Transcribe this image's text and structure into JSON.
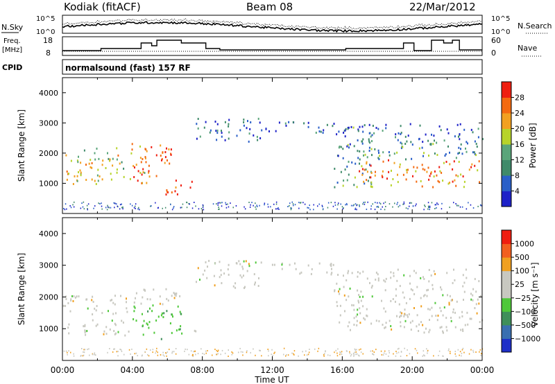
{
  "header": {
    "station": "Kodiak (fitACF)",
    "beam": "Beam 08",
    "date": "22/Mar/2012"
  },
  "param_panels": {
    "nsky_label": "N.Sky",
    "nsearch_label": "N.Search",
    "noise_ticks_left": [
      "10^5",
      "10^0"
    ],
    "noise_ticks_right": [
      "10^5",
      "10^0"
    ],
    "freq_label": "Freq.",
    "freq_unit": "[MHz]",
    "freq_ticks": [
      "18",
      "8"
    ],
    "nave_label": "Nave",
    "nave_ticks": [
      "60",
      "0"
    ],
    "cpid_label": "CPID",
    "cpid_text": "normalsound (fast) 157 RF"
  },
  "chart_data": [
    {
      "type": "heatmap",
      "name_id": "power",
      "ylabel": "Slant Range [km]",
      "ylim": [
        0,
        4500
      ],
      "yticks": [
        1000,
        2000,
        3000,
        4000
      ],
      "xlim": [
        0,
        24
      ],
      "colorbar_label": "Power [dB]",
      "colorbar_ticks": [
        "4",
        "8",
        "12",
        "16",
        "20",
        "24",
        "28"
      ],
      "colorbar_colors": [
        "#1e22c8",
        "#2a5fc8",
        "#3f8a6a",
        "#5aa57a",
        "#b7d32a",
        "#f2a020",
        "#f46a10",
        "#ef1e10"
      ],
      "scatter_bands": [
        {
          "t0": 0.0,
          "t1": 1.0,
          "r0": 900,
          "r1": 2100,
          "level": 0.62
        },
        {
          "t0": 1.0,
          "t1": 3.6,
          "r0": 1000,
          "r1": 2200,
          "level": 0.55
        },
        {
          "t0": 3.6,
          "t1": 4.8,
          "r0": 1000,
          "r1": 2400,
          "level": 0.7
        },
        {
          "t0": 4.5,
          "t1": 6.2,
          "r0": 1200,
          "r1": 2400,
          "level": 0.85
        },
        {
          "t0": 5.8,
          "t1": 7.4,
          "r0": 650,
          "r1": 1200,
          "level": 0.95
        },
        {
          "t0": 7.6,
          "t1": 11.5,
          "r0": 2400,
          "r1": 3200,
          "level": 0.25
        },
        {
          "t0": 11.5,
          "t1": 15.5,
          "r0": 2700,
          "r1": 3100,
          "level": 0.2
        },
        {
          "t0": 15.5,
          "t1": 17.8,
          "r0": 900,
          "r1": 2900,
          "level": 0.3
        },
        {
          "t0": 16.8,
          "t1": 24.0,
          "r0": 900,
          "r1": 1800,
          "level": 0.75
        },
        {
          "t0": 17.5,
          "t1": 24.0,
          "r0": 1800,
          "r1": 2400,
          "level": 0.35
        },
        {
          "t0": 16.0,
          "t1": 24.0,
          "r0": 2400,
          "r1": 3000,
          "level": 0.18
        }
      ]
    },
    {
      "type": "heatmap",
      "name_id": "velocity",
      "ylabel": "Slant Range [km]",
      "ylim": [
        0,
        4500
      ],
      "yticks": [
        1000,
        2000,
        3000,
        4000
      ],
      "xlim": [
        0,
        24
      ],
      "xticks": [
        "00:00",
        "04:00",
        "08:00",
        "12:00",
        "16:00",
        "20:00",
        "00:00"
      ],
      "xlabel": "Time UT",
      "colorbar_label": "Velocity [m s⁻¹]",
      "colorbar_ticks": [
        "1000",
        "500",
        "100",
        "25",
        "−25",
        "−100",
        "−500",
        "−1000"
      ],
      "colorbar_colors": [
        "#1e2fc8",
        "#3a6fb0",
        "#3f8f5a",
        "#4fc83a",
        "#c8c8c0",
        "#c8c8c0",
        "#f0a020",
        "#f26020",
        "#ef1e10"
      ],
      "scatter_bands": [
        {
          "t0": 0.0,
          "t1": 3.8,
          "r0": 800,
          "r1": 2100,
          "level": 0.5
        },
        {
          "t0": 3.8,
          "t1": 6.8,
          "r0": 700,
          "r1": 2300,
          "level": 0.35
        },
        {
          "t0": 6.8,
          "t1": 7.6,
          "r0": 800,
          "r1": 1000,
          "level": 0.5
        },
        {
          "t0": 7.6,
          "t1": 11.5,
          "r0": 2300,
          "r1": 3200,
          "level": 0.5
        },
        {
          "t0": 11.5,
          "t1": 15.5,
          "r0": 2700,
          "r1": 3100,
          "level": 0.5
        },
        {
          "t0": 15.5,
          "t1": 24.0,
          "r0": 900,
          "r1": 2900,
          "level": 0.5
        }
      ]
    }
  ]
}
